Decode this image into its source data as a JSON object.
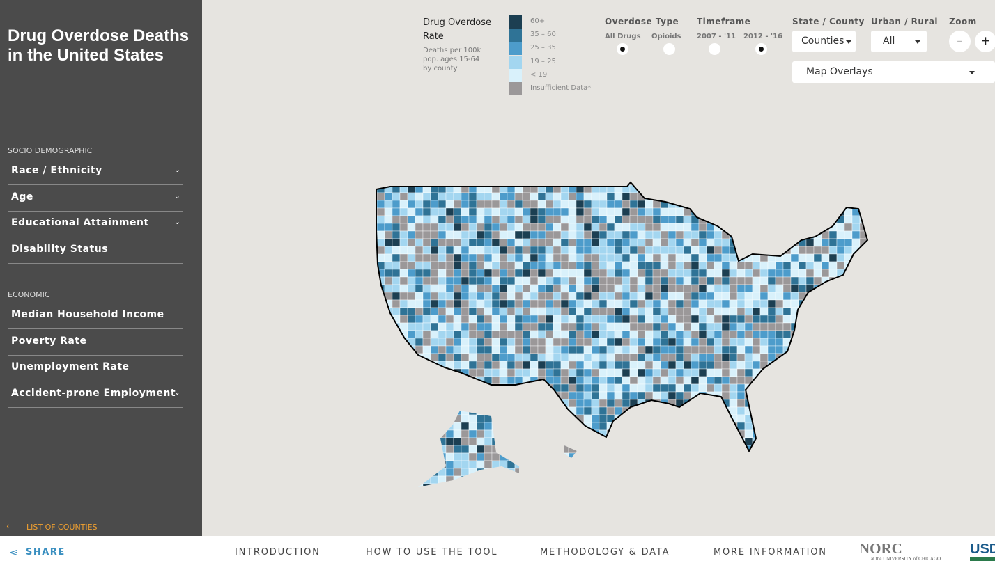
{
  "sidebar": {
    "title": "Drug Overdose Deaths in the United States",
    "sections": [
      {
        "heading": "SOCIO DEMOGRAPHIC",
        "items": [
          {
            "label": "Race / Ethnicity",
            "expandable": true
          },
          {
            "label": "Age",
            "expandable": true
          },
          {
            "label": "Educational Attainment",
            "expandable": true
          },
          {
            "label": "Disability Status",
            "expandable": false
          }
        ]
      },
      {
        "heading": "ECONOMIC",
        "items": [
          {
            "label": "Median Household Income",
            "expandable": false
          },
          {
            "label": "Poverty Rate",
            "expandable": false
          },
          {
            "label": "Unemployment Rate",
            "expandable": false
          },
          {
            "label": "Accident-prone Employment",
            "expandable": true
          }
        ]
      }
    ],
    "list_link": "LIST OF COUNTIES"
  },
  "legend": {
    "title": "Drug Overdose Rate",
    "subtitle": [
      "Deaths per 100k",
      "pop. ages 15-64",
      "by county"
    ],
    "bins": [
      {
        "label": "60+",
        "color": "#1c3f52"
      },
      {
        "label": "35 – 60",
        "color": "#2f7396"
      },
      {
        "label": "25 – 35",
        "color": "#4d9ccb"
      },
      {
        "label": "19 – 25",
        "color": "#a3d6f0"
      },
      {
        "label": "< 19",
        "color": "#d9f1fb"
      },
      {
        "label": "Insufficient Data*",
        "color": "#9b9899"
      }
    ]
  },
  "controls": {
    "overdose_type": {
      "label": "Overdose Type",
      "options": [
        "All Drugs",
        "Opioids"
      ],
      "selected": 0
    },
    "timeframe": {
      "label": "Timeframe",
      "options": [
        "2007 - '11",
        "2012 - '16"
      ],
      "selected": 1
    },
    "state_county": {
      "label": "State / County",
      "value": "Counties"
    },
    "urban_rural": {
      "label": "Urban / Rural",
      "value": "All"
    },
    "zoom": {
      "label": "Zoom",
      "buttons": [
        "–",
        "+"
      ]
    },
    "overlays": "Map Overlays"
  },
  "footer": {
    "share": "SHARE",
    "nav": [
      "INTRODUCTION",
      "HOW TO USE THE TOOL",
      "METHODOLOGY & DATA",
      "MORE INFORMATION"
    ],
    "logos": [
      {
        "main": "NORC",
        "sub": "at the UNIVERSITY of CHICAGO"
      },
      {
        "main": "USDA",
        "sub": ""
      }
    ]
  }
}
